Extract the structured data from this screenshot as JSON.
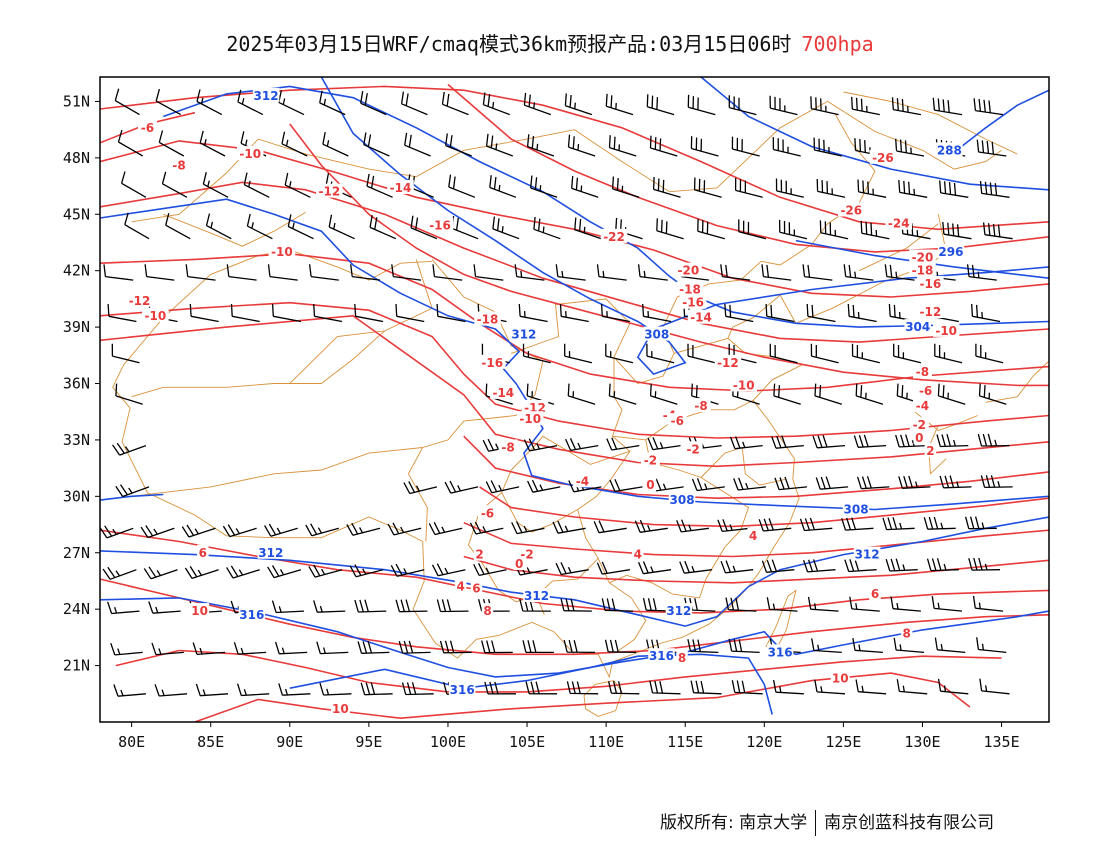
{
  "title": {
    "main": "2025年03月15日WRF/cmaq模式36km预报产品:03月15日06时",
    "level": "700hpa"
  },
  "axes": {
    "lon": {
      "range": [
        78,
        138
      ],
      "ticks": [
        "80E",
        "85E",
        "90E",
        "95E",
        "100E",
        "105E",
        "110E",
        "115E",
        "120E",
        "125E",
        "130E",
        "135E"
      ]
    },
    "lat": {
      "range": [
        18,
        52.3
      ],
      "ticks": [
        "21N",
        "24N",
        "27N",
        "30N",
        "33N",
        "36N",
        "39N",
        "42N",
        "45N",
        "48N",
        "51N"
      ]
    }
  },
  "colors": {
    "temperature": "#e83a3a",
    "geopotential": "#1f4fe0",
    "boundary": "#d9913a",
    "wind": "#000000",
    "frame": "#000000"
  },
  "map_data": {
    "layers": [
      "temperature-isotherms",
      "geopotential-height-contours",
      "wind-barbs",
      "province-boundaries"
    ],
    "temperature_labels": [
      {
        "text": "-8",
        "lon": 83.0,
        "lat": 47.6
      },
      {
        "text": "-6",
        "lon": 81.0,
        "lat": 49.6
      },
      {
        "text": "-10",
        "lon": 87.5,
        "lat": 48.2
      },
      {
        "text": "-12",
        "lon": 92.5,
        "lat": 46.2
      },
      {
        "text": "-14",
        "lon": 97.0,
        "lat": 46.4
      },
      {
        "text": "-16",
        "lon": 99.5,
        "lat": 44.4
      },
      {
        "text": "-10",
        "lon": 89.5,
        "lat": 43.0
      },
      {
        "text": "-12",
        "lon": 80.5,
        "lat": 40.4
      },
      {
        "text": "-10",
        "lon": 81.5,
        "lat": 39.6
      },
      {
        "text": "-22",
        "lon": 110.5,
        "lat": 43.8
      },
      {
        "text": "-18",
        "lon": 102.5,
        "lat": 39.4
      },
      {
        "text": "-16",
        "lon": 102.8,
        "lat": 37.1
      },
      {
        "text": "-14",
        "lon": 103.5,
        "lat": 35.5
      },
      {
        "text": "-12",
        "lon": 105.5,
        "lat": 34.7
      },
      {
        "text": "-10",
        "lon": 105.2,
        "lat": 34.1
      },
      {
        "text": "-8",
        "lon": 103.8,
        "lat": 32.6
      },
      {
        "text": "-4",
        "lon": 108.5,
        "lat": 30.8
      },
      {
        "text": "-2",
        "lon": 112.8,
        "lat": 31.9
      },
      {
        "text": "-2",
        "lon": 115.5,
        "lat": 32.5
      },
      {
        "text": "0",
        "lon": 112.8,
        "lat": 30.6
      },
      {
        "text": "-4",
        "lon": 114.0,
        "lat": 34.3
      },
      {
        "text": "-6",
        "lon": 114.5,
        "lat": 34.0
      },
      {
        "text": "-8",
        "lon": 116.0,
        "lat": 34.8
      },
      {
        "text": "-10",
        "lon": 118.7,
        "lat": 35.9
      },
      {
        "text": "-12",
        "lon": 117.7,
        "lat": 37.1
      },
      {
        "text": "-14",
        "lon": 116.0,
        "lat": 39.5
      },
      {
        "text": "-16",
        "lon": 115.5,
        "lat": 40.3
      },
      {
        "text": "-18",
        "lon": 115.3,
        "lat": 41.0
      },
      {
        "text": "-20",
        "lon": 115.2,
        "lat": 42.0
      },
      {
        "text": "-26",
        "lon": 127.5,
        "lat": 48.0
      },
      {
        "text": "-26",
        "lon": 125.5,
        "lat": 45.2
      },
      {
        "text": "-24",
        "lon": 128.5,
        "lat": 44.5
      },
      {
        "text": "-20",
        "lon": 130.0,
        "lat": 42.7
      },
      {
        "text": "-18",
        "lon": 130.0,
        "lat": 42.0
      },
      {
        "text": "-16",
        "lon": 130.5,
        "lat": 41.3
      },
      {
        "text": "-12",
        "lon": 130.5,
        "lat": 39.8
      },
      {
        "text": "-10",
        "lon": 131.5,
        "lat": 38.8
      },
      {
        "text": "-8",
        "lon": 130.0,
        "lat": 36.6
      },
      {
        "text": "-6",
        "lon": 130.2,
        "lat": 35.6
      },
      {
        "text": "-4",
        "lon": 130.0,
        "lat": 34.8
      },
      {
        "text": "-2",
        "lon": 129.8,
        "lat": 33.8
      },
      {
        "text": "0",
        "lon": 129.8,
        "lat": 33.1
      },
      {
        "text": "2",
        "lon": 130.5,
        "lat": 32.4
      },
      {
        "text": "-6",
        "lon": 102.5,
        "lat": 29.1
      },
      {
        "text": "-2",
        "lon": 105.0,
        "lat": 26.9
      },
      {
        "text": "2",
        "lon": 102.0,
        "lat": 26.9
      },
      {
        "text": "0",
        "lon": 104.5,
        "lat": 26.4
      },
      {
        "text": "4",
        "lon": 100.8,
        "lat": 25.2
      },
      {
        "text": "6",
        "lon": 101.8,
        "lat": 25.1
      },
      {
        "text": "4",
        "lon": 112.0,
        "lat": 26.9
      },
      {
        "text": "4",
        "lon": 119.3,
        "lat": 27.9
      },
      {
        "text": "6",
        "lon": 84.5,
        "lat": 27.0
      },
      {
        "text": "8",
        "lon": 102.5,
        "lat": 23.9
      },
      {
        "text": "10",
        "lon": 84.3,
        "lat": 23.9
      },
      {
        "text": "6",
        "lon": 127.0,
        "lat": 24.8
      },
      {
        "text": "8",
        "lon": 129.0,
        "lat": 22.7
      },
      {
        "text": "8",
        "lon": 114.8,
        "lat": 21.4
      },
      {
        "text": "10",
        "lon": 124.8,
        "lat": 20.3
      },
      {
        "text": "10",
        "lon": 93.2,
        "lat": 18.7
      }
    ],
    "geopotential_labels": [
      {
        "text": "312",
        "lon": 88.5,
        "lat": 51.3
      },
      {
        "text": "288",
        "lon": 131.7,
        "lat": 48.4
      },
      {
        "text": "296",
        "lon": 131.8,
        "lat": 43.0
      },
      {
        "text": "304",
        "lon": 129.7,
        "lat": 39.0
      },
      {
        "text": "312",
        "lon": 104.8,
        "lat": 38.6
      },
      {
        "text": "308",
        "lon": 113.2,
        "lat": 38.6
      },
      {
        "text": "308",
        "lon": 114.8,
        "lat": 29.8
      },
      {
        "text": "308",
        "lon": 125.8,
        "lat": 29.3
      },
      {
        "text": "312",
        "lon": 88.8,
        "lat": 27.0
      },
      {
        "text": "312",
        "lon": 126.5,
        "lat": 26.9
      },
      {
        "text": "312",
        "lon": 105.6,
        "lat": 24.7
      },
      {
        "text": "312",
        "lon": 114.6,
        "lat": 23.9
      },
      {
        "text": "316",
        "lon": 87.6,
        "lat": 23.7
      },
      {
        "text": "316",
        "lon": 113.5,
        "lat": 21.5
      },
      {
        "text": "316",
        "lon": 121.0,
        "lat": 21.7
      },
      {
        "text": "316",
        "lon": 100.9,
        "lat": 19.7
      }
    ]
  },
  "footer": {
    "copyright": "版权所有: 南京大学",
    "company": "南京创蓝科技有限公司"
  }
}
